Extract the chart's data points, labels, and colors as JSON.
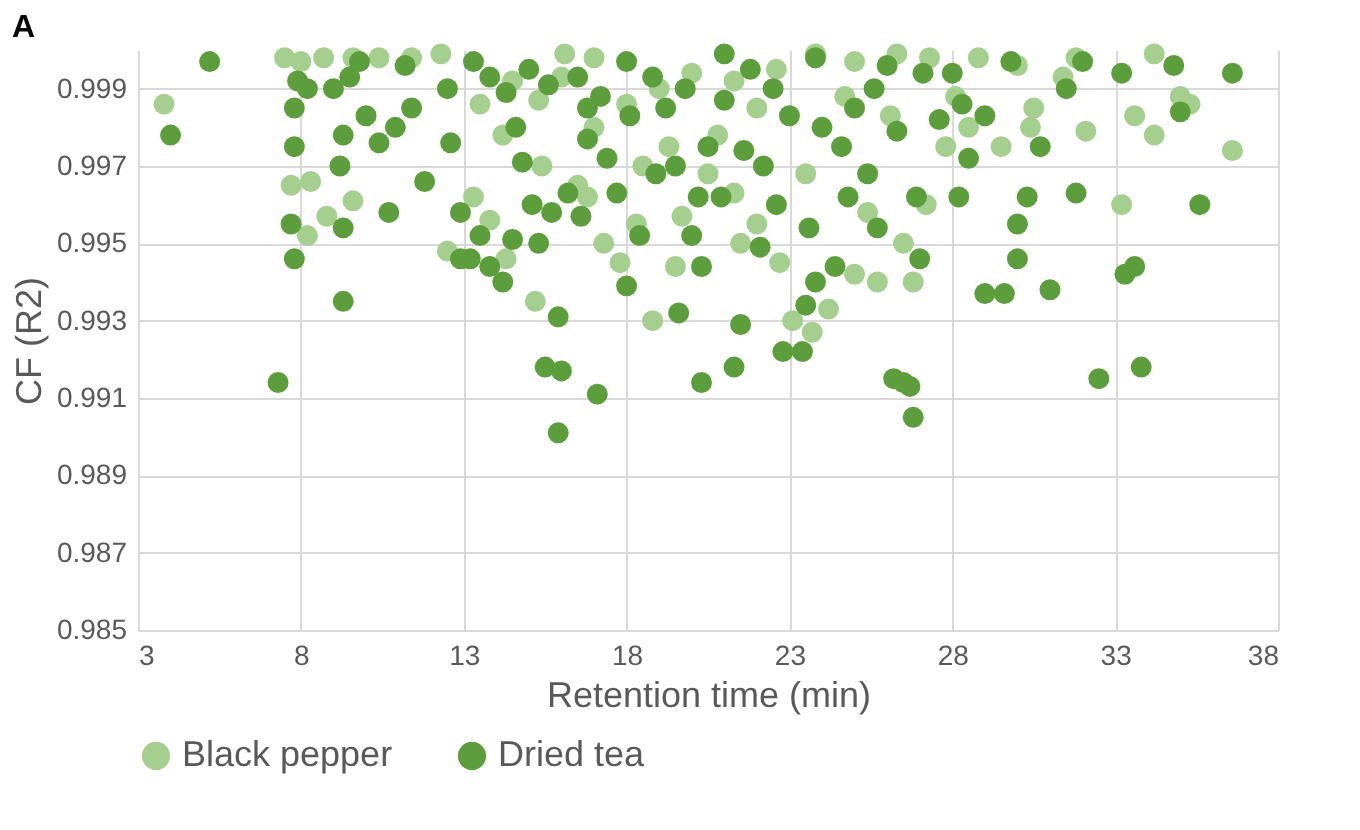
{
  "chart_data": {
    "type": "scatter",
    "title": "A",
    "xlabel": "Retention time (min)",
    "ylabel": "CF  (R2)",
    "xlim": [
      3,
      38
    ],
    "xticks": [
      3,
      8,
      13,
      18,
      23,
      28,
      33,
      38
    ],
    "ylim": [
      0.985,
      1.0
    ],
    "yticks": [
      0.985,
      0.987,
      0.989,
      0.991,
      0.993,
      0.995,
      0.997,
      0.999
    ],
    "grid": true,
    "legend": "bottom",
    "marker": "circle",
    "series": [
      {
        "name": "Black pepper",
        "color": "#a5cf8e",
        "x": [
          3.8,
          7.5,
          8,
          8.7,
          9.6,
          10.4,
          11.4,
          12.3,
          7.7,
          8.3,
          8.8,
          9.6,
          8.2,
          12.5,
          13.3,
          14.3,
          13.8,
          15.2,
          16.1,
          17,
          16.5,
          17.3,
          18.3,
          18.8,
          19.5,
          20.5,
          21.3,
          22,
          22.7,
          23.1,
          23.7,
          24.2,
          25,
          25.7,
          26.5,
          27.2,
          27.8,
          28.5,
          29.5,
          30.5,
          31.4,
          32.1,
          33.2,
          33.6,
          34.2,
          35,
          35.3,
          36.6,
          34.2,
          31.8,
          30,
          28.8,
          27.3,
          26.3,
          25,
          23.8,
          22.6,
          21.3,
          20,
          19,
          18,
          17,
          16,
          15.3,
          14.5,
          13.5,
          24.7,
          22,
          20.8,
          19.3,
          18.5,
          16.8,
          15.4,
          14.2,
          23.5,
          26.1,
          28.1,
          30.4,
          21.5,
          19.7,
          17.8,
          26.8,
          25.4
        ],
        "values": [
          0.9986,
          0.9998,
          0.9997,
          0.9998,
          0.9998,
          0.9998,
          0.9998,
          0.9999,
          0.9965,
          0.9966,
          0.9957,
          0.9961,
          0.9952,
          0.9948,
          0.9962,
          0.9946,
          0.9956,
          0.9935,
          0.9999,
          0.9998,
          0.9965,
          0.995,
          0.9955,
          0.993,
          0.9944,
          0.9968,
          0.9963,
          0.9955,
          0.9945,
          0.993,
          0.9927,
          0.9933,
          0.9942,
          0.994,
          0.995,
          0.996,
          0.9975,
          0.998,
          0.9975,
          0.9985,
          0.9993,
          0.9979,
          0.996,
          0.9983,
          0.9978,
          0.9988,
          0.9986,
          0.9974,
          0.9999,
          0.9998,
          0.9996,
          0.9998,
          0.9998,
          0.9999,
          0.9997,
          0.9999,
          0.9995,
          0.9992,
          0.9994,
          0.999,
          0.9986,
          0.998,
          0.9993,
          0.9987,
          0.9992,
          0.9986,
          0.9988,
          0.9985,
          0.9978,
          0.9975,
          0.997,
          0.9962,
          0.997,
          0.9978,
          0.9968,
          0.9983,
          0.9988,
          0.998,
          0.995,
          0.9957,
          0.9945,
          0.994,
          0.9958
        ]
      },
      {
        "name": "Dried tea",
        "color": "#5c9e3b",
        "x": [
          4,
          5.2,
          7.3,
          7.8,
          7.7,
          7.8,
          7.8,
          7.9,
          8.2,
          9.3,
          9.3,
          9.2,
          9.3,
          9,
          9.5,
          10.4,
          10.7,
          10.9,
          11.2,
          11.8,
          12.6,
          12.9,
          12.9,
          13.2,
          13.5,
          13.8,
          14.2,
          14.5,
          15.1,
          15.3,
          15.5,
          15.9,
          15.9,
          16,
          15.7,
          16.2,
          17.1,
          16.6,
          16.8,
          17.4,
          18,
          18.4,
          18.1,
          18.9,
          19.2,
          19.6,
          20.3,
          20,
          20.3,
          20.9,
          21.3,
          21.5,
          21.6,
          22.1,
          22.6,
          22.8,
          23.4,
          23.5,
          23.6,
          23.8,
          24.4,
          24.8,
          25.4,
          25.7,
          26.2,
          26.5,
          26.8,
          26.7,
          26.9,
          27,
          27.6,
          28.2,
          28.3,
          28.5,
          29,
          29.6,
          30,
          30,
          30.3,
          31,
          31.5,
          31.8,
          32.5,
          33.3,
          33.6,
          33.8,
          34.8,
          35,
          35.6,
          36.6,
          33.2,
          32,
          29.8,
          27.1,
          26,
          25,
          24,
          23,
          22.5,
          21.8,
          21,
          20.5,
          19.8,
          18.8,
          18,
          17.2,
          16.5,
          15.6,
          15,
          14.3,
          13.8,
          13.3,
          12.5,
          11.4,
          9.8,
          10,
          14.6,
          16.8,
          19.5,
          22.2,
          24.6,
          26.3,
          28,
          29,
          30.7,
          23.8,
          21,
          25.6,
          20.2,
          17.7,
          14.8
        ],
        "values": [
          0.9978,
          0.9997,
          0.9914,
          0.9946,
          0.9955,
          0.9975,
          0.9985,
          0.9992,
          0.999,
          0.9935,
          0.9954,
          0.997,
          0.9978,
          0.999,
          0.9993,
          0.9976,
          0.9958,
          0.998,
          0.9996,
          0.9966,
          0.9976,
          0.9946,
          0.9958,
          0.9946,
          0.9952,
          0.9944,
          0.994,
          0.9951,
          0.996,
          0.995,
          0.9918,
          0.9901,
          0.9931,
          0.9917,
          0.9958,
          0.9963,
          0.9911,
          0.9957,
          0.9977,
          0.9972,
          0.9939,
          0.9952,
          0.9983,
          0.9968,
          0.9985,
          0.9932,
          0.9914,
          0.9952,
          0.9944,
          0.9962,
          0.9918,
          0.9929,
          0.9974,
          0.9949,
          0.996,
          0.9922,
          0.9922,
          0.9934,
          0.9954,
          0.994,
          0.9944,
          0.9962,
          0.9968,
          0.9954,
          0.9915,
          0.9914,
          0.9905,
          0.9913,
          0.9962,
          0.9946,
          0.9982,
          0.9962,
          0.9986,
          0.9972,
          0.9937,
          0.9937,
          0.9955,
          0.9946,
          0.9962,
          0.9938,
          0.999,
          0.9963,
          0.9915,
          0.9942,
          0.9944,
          0.9918,
          0.9996,
          0.9984,
          0.996,
          0.9994,
          0.9994,
          0.9997,
          0.9997,
          0.9994,
          0.9996,
          0.9985,
          0.998,
          0.9983,
          0.999,
          0.9995,
          0.9987,
          0.9975,
          0.999,
          0.9993,
          0.9997,
          0.9988,
          0.9993,
          0.9991,
          0.9995,
          0.9989,
          0.9993,
          0.9997,
          0.999,
          0.9985,
          0.9997,
          0.9983,
          0.998,
          0.9985,
          0.997,
          0.997,
          0.9975,
          0.9979,
          0.9994,
          0.9983,
          0.9975,
          0.9998,
          0.9999,
          0.999,
          0.9962,
          0.9963,
          0.9971
        ]
      }
    ]
  }
}
